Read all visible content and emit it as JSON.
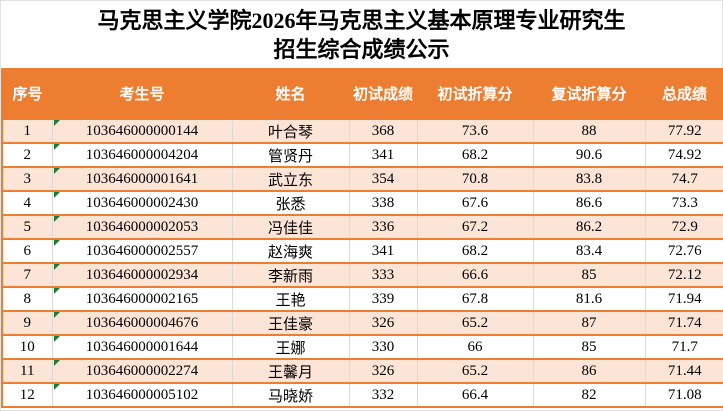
{
  "title": {
    "line1": "马克思主义学院2026年马克思主义基本原理专业研究生",
    "line2": "招生综合成绩公示"
  },
  "table": {
    "columns": [
      {
        "key": "seq",
        "label": "序号"
      },
      {
        "key": "candidate-no",
        "label": "考生号"
      },
      {
        "key": "name",
        "label": "姓名"
      },
      {
        "key": "initial-score",
        "label": "初试成绩"
      },
      {
        "key": "initial-converted-score",
        "label": "初试折算分"
      },
      {
        "key": "retest-converted-score",
        "label": "复试折算分"
      },
      {
        "key": "total-score",
        "label": "总成绩"
      }
    ],
    "rows": [
      [
        "1",
        "103646000000144",
        "叶合琴",
        "368",
        "73.6",
        "88",
        "77.92"
      ],
      [
        "2",
        "103646000004204",
        "管贤丹",
        "341",
        "68.2",
        "90.6",
        "74.92"
      ],
      [
        "3",
        "103646000001641",
        "武立东",
        "354",
        "70.8",
        "83.8",
        "74.7"
      ],
      [
        "4",
        "103646000002430",
        "张悉",
        "338",
        "67.6",
        "86.6",
        "73.3"
      ],
      [
        "5",
        "103646000002053",
        "冯佳佳",
        "336",
        "67.2",
        "86.2",
        "72.9"
      ],
      [
        "6",
        "103646000002557",
        "赵海爽",
        "341",
        "68.2",
        "83.4",
        "72.76"
      ],
      [
        "7",
        "103646000002934",
        "李新雨",
        "333",
        "66.6",
        "85",
        "72.12"
      ],
      [
        "8",
        "103646000002165",
        "王艳",
        "339",
        "67.8",
        "81.6",
        "71.94"
      ],
      [
        "9",
        "103646000004676",
        "王佳豪",
        "326",
        "65.2",
        "87",
        "71.74"
      ],
      [
        "10",
        "103646000001644",
        "王娜",
        "330",
        "66",
        "85",
        "71.7"
      ],
      [
        "11",
        "103646000002274",
        "王馨月",
        "326",
        "65.2",
        "86",
        "71.44"
      ],
      [
        "12",
        "103646000005102",
        "马晓娇",
        "332",
        "66.4",
        "82",
        "71.08"
      ]
    ]
  },
  "colors": {
    "header_background": "#ED7D31",
    "banded_row_background": "#FCE4D6",
    "row_border": "#ED7D31",
    "inner_vertical_border": "#d9d9d9",
    "text_indicator_green": "#1F7A33",
    "header_text": "#ffffff"
  }
}
